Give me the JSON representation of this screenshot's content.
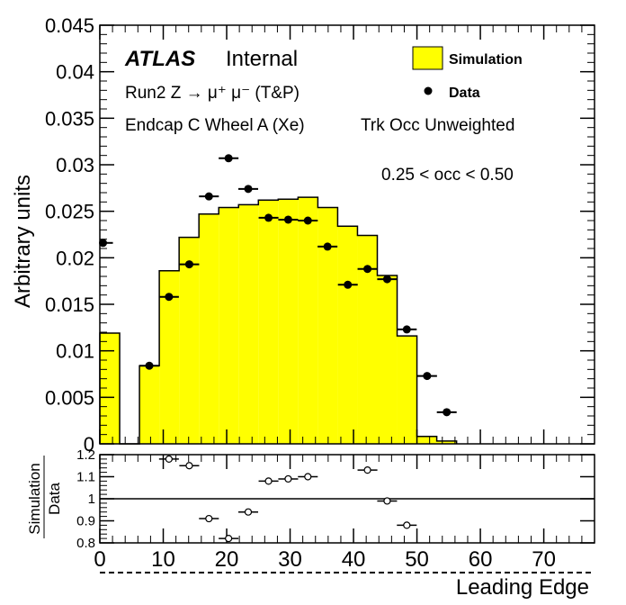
{
  "chart_data": [
    {
      "type": "histogram",
      "ylabel": "Arbitrary units",
      "ylim": [
        0,
        0.045
      ],
      "xlim": [
        0,
        78
      ],
      "y_ticks": [
        "0",
        "0.005",
        "0.01",
        "0.015",
        "0.02",
        "0.025",
        "0.03",
        "0.035",
        "0.04",
        "0.045"
      ],
      "y_tick_values": [
        0,
        0.005,
        0.01,
        0.015,
        0.02,
        0.025,
        0.03,
        0.035,
        0.04,
        0.045
      ],
      "label_atlas": "ATLAS",
      "label_internal": "Internal",
      "info_line1": "Run2 Z → μ⁺ μ⁻ (T&P)",
      "info_line2a": "Endcap C Wheel A (Xe)",
      "info_line2b": "Trk Occ Unweighted",
      "info_line3": "0.25 < occ < 0.50",
      "legend": [
        {
          "label": "Simulation",
          "marker": "filled-box",
          "color": "#ffff00"
        },
        {
          "label": "Data",
          "marker": "filled-circle",
          "color": "#000000"
        }
      ],
      "bin_width": 3.125,
      "simulation": {
        "name": "Simulation",
        "color": "#ffff00",
        "bin_starts": [
          0,
          3.125,
          6.25,
          9.375,
          12.5,
          15.625,
          18.75,
          21.875,
          25,
          28.125,
          31.25,
          34.375,
          37.5,
          40.625,
          43.75,
          46.875,
          50,
          53.125
        ],
        "values": [
          0.0119,
          0,
          0.0084,
          0.0186,
          0.0222,
          0.0247,
          0.0254,
          0.0257,
          0.0262,
          0.0263,
          0.0265,
          0.0254,
          0.0234,
          0.0224,
          0.0181,
          0.0116,
          0.0008,
          0.0003
        ]
      },
      "data": {
        "name": "Data",
        "color": "#000000",
        "x": [
          0.5,
          7.8,
          10.9,
          14.1,
          17.2,
          20.3,
          23.4,
          26.6,
          29.7,
          32.8,
          35.9,
          39.1,
          42.2,
          45.3,
          48.4,
          51.6,
          54.7
        ],
        "y": [
          0.0216,
          0.0084,
          0.0158,
          0.0193,
          0.0266,
          0.0307,
          0.0274,
          0.0243,
          0.0241,
          0.024,
          0.0212,
          0.0171,
          0.0188,
          0.0177,
          0.0123,
          0.0073,
          0.0034
        ]
      }
    },
    {
      "type": "scatter",
      "ylabel_num": "Simulation",
      "ylabel_den": "Data",
      "xlabel": "Leading Edge",
      "ylim": [
        0.8,
        1.2
      ],
      "xlim": [
        0,
        78
      ],
      "x_ticks": [
        "0",
        "10",
        "20",
        "30",
        "40",
        "50",
        "60",
        "70"
      ],
      "x_tick_values": [
        0,
        10,
        20,
        30,
        40,
        50,
        60,
        70
      ],
      "y_ticks": [
        "0.8",
        "0.9",
        "1",
        "1.1",
        "1.2"
      ],
      "y_tick_values": [
        0.8,
        0.9,
        1.0,
        1.1,
        1.2
      ],
      "reference_line": 1.0,
      "series": [
        {
          "name": "Simulation/Data",
          "x": [
            10.9,
            14.1,
            17.2,
            20.3,
            23.4,
            26.6,
            29.7,
            32.8,
            42.2,
            45.3,
            48.4
          ],
          "y": [
            1.18,
            1.15,
            0.91,
            0.82,
            0.94,
            1.08,
            1.09,
            1.1,
            1.13,
            0.99,
            0.88
          ]
        }
      ]
    }
  ]
}
